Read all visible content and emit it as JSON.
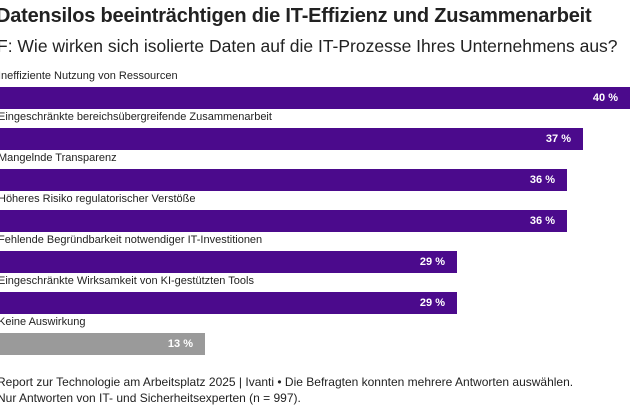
{
  "header": {
    "title": "Datensilos beeinträchtigen die IT-Effizienz und Zusammenarbeit",
    "subtitle": "F: Wie wirken sich isolierte Daten auf die IT-Prozesse Ihres Unternehmens aus?"
  },
  "footer": {
    "line1": "Report zur Technologie am Arbeitsplatz 2025 | Ivanti • Die Befragten konnten mehrere Antworten auswählen.",
    "line2": "Nur Antworten von IT- und Sicherheitsexperten (n = 997)."
  },
  "colors": {
    "primary_bar": "#4B0A8C",
    "neutral_bar": "#9A9A9A"
  },
  "chart_data": {
    "type": "bar",
    "orientation": "horizontal",
    "unit": "%",
    "xlim": [
      0,
      40
    ],
    "categories": [
      "Ineffiziente Nutzung von Ressourcen",
      "Eingeschränkte bereichsübergreifende Zusammenarbeit",
      "Mangelnde Transparenz",
      "Höheres Risiko regulatorischer Verstöße",
      "Fehlende Begründbarkeit notwendiger IT-Investitionen",
      "Eingeschränkte Wirksamkeit von KI-gestützten Tools",
      "Keine Auswirkung"
    ],
    "values": [
      40,
      37,
      36,
      36,
      29,
      29,
      13
    ],
    "value_labels": [
      "40 %",
      "37 %",
      "36 %",
      "36 %",
      "29 %",
      "29 %",
      "13 %"
    ],
    "bar_colors": [
      "#4B0A8C",
      "#4B0A8C",
      "#4B0A8C",
      "#4B0A8C",
      "#4B0A8C",
      "#4B0A8C",
      "#9A9A9A"
    ]
  }
}
